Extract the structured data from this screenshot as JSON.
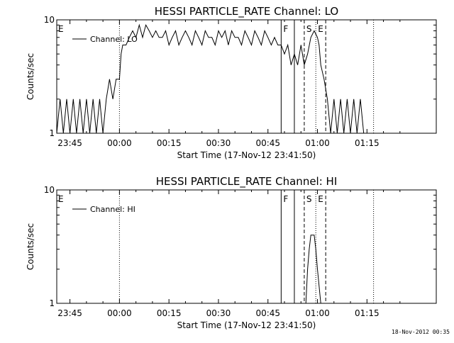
{
  "footer_timestamp": "18-Nov-2012 00:35",
  "chart_data": [
    {
      "type": "line",
      "title": "HESSI PARTICLE_RATE Channel: LO",
      "xlabel": "Start Time (17-Nov-12 23:41:50)",
      "ylabel": "Counts/sec",
      "yscale": "log",
      "ylim": [
        1,
        10
      ],
      "xlim_minutes": [
        -19,
        96
      ],
      "x_unit": "minutes relative to 00:00 (17-18 Nov 2012)",
      "x_ticks": [
        {
          "t": -15,
          "label": "23:45"
        },
        {
          "t": 0,
          "label": "00:00"
        },
        {
          "t": 15,
          "label": "00:15"
        },
        {
          "t": 30,
          "label": "00:30"
        },
        {
          "t": 45,
          "label": "00:45"
        },
        {
          "t": 60,
          "label": "01:00"
        },
        {
          "t": 75,
          "label": "01:15"
        }
      ],
      "y_ticks": [
        {
          "v": 1,
          "label": "1"
        },
        {
          "v": 10,
          "label": "10"
        }
      ],
      "legend": {
        "label": "Channel: LO",
        "placement": "top-left"
      },
      "flags": [
        {
          "t": -19,
          "label": "E",
          "style": "none"
        },
        {
          "t": 0,
          "label": "",
          "style": "dotted"
        },
        {
          "t": 49,
          "label": "F",
          "style": "solid"
        },
        {
          "t": 53,
          "label": "",
          "style": "solid"
        },
        {
          "t": 56,
          "label": "S",
          "style": "dashed"
        },
        {
          "t": 59.5,
          "label": "E",
          "style": "dotted"
        },
        {
          "t": 62.5,
          "label": "",
          "style": "dashed"
        },
        {
          "t": 77,
          "label": "",
          "style": "dotted"
        }
      ],
      "series": [
        {
          "name": "Channel: LO",
          "points": [
            [
              -19,
              1
            ],
            [
              -18,
              2
            ],
            [
              -17,
              1
            ],
            [
              -16,
              2
            ],
            [
              -15,
              1
            ],
            [
              -14,
              2
            ],
            [
              -13,
              1
            ],
            [
              -12,
              2
            ],
            [
              -11,
              1
            ],
            [
              -10,
              2
            ],
            [
              -9,
              1
            ],
            [
              -8,
              2
            ],
            [
              -7,
              1
            ],
            [
              -6,
              2
            ],
            [
              -5,
              1
            ],
            [
              -4,
              2
            ],
            [
              -3,
              3
            ],
            [
              -2,
              2
            ],
            [
              -1,
              3
            ],
            [
              0,
              3
            ],
            [
              0.5,
              5
            ],
            [
              1,
              6
            ],
            [
              2,
              6
            ],
            [
              3,
              7
            ],
            [
              4,
              8
            ],
            [
              5,
              7
            ],
            [
              6,
              9
            ],
            [
              7,
              7
            ],
            [
              8,
              9
            ],
            [
              9,
              8
            ],
            [
              10,
              7
            ],
            [
              11,
              8
            ],
            [
              12,
              7
            ],
            [
              13,
              7
            ],
            [
              14,
              8
            ],
            [
              15,
              6
            ],
            [
              16,
              7
            ],
            [
              17,
              8
            ],
            [
              18,
              6
            ],
            [
              19,
              7
            ],
            [
              20,
              8
            ],
            [
              21,
              7
            ],
            [
              22,
              6
            ],
            [
              23,
              8
            ],
            [
              24,
              7
            ],
            [
              25,
              6
            ],
            [
              26,
              8
            ],
            [
              27,
              7
            ],
            [
              28,
              7
            ],
            [
              29,
              6
            ],
            [
              30,
              8
            ],
            [
              31,
              7
            ],
            [
              32,
              8
            ],
            [
              33,
              6
            ],
            [
              34,
              8
            ],
            [
              35,
              7
            ],
            [
              36,
              7
            ],
            [
              37,
              6
            ],
            [
              38,
              8
            ],
            [
              39,
              7
            ],
            [
              40,
              6
            ],
            [
              41,
              8
            ],
            [
              42,
              7
            ],
            [
              43,
              6
            ],
            [
              44,
              8
            ],
            [
              45,
              7
            ],
            [
              46,
              6
            ],
            [
              47,
              7
            ],
            [
              48,
              6
            ],
            [
              49,
              6
            ],
            [
              50,
              5
            ],
            [
              51,
              6
            ],
            [
              52,
              4
            ],
            [
              53,
              5
            ],
            [
              54,
              4
            ],
            [
              55,
              6
            ],
            [
              56,
              4
            ],
            [
              57,
              5
            ],
            [
              58,
              7
            ],
            [
              59,
              8
            ],
            [
              60,
              7
            ],
            [
              60.5,
              6
            ],
            [
              61,
              4
            ],
            [
              62,
              3
            ],
            [
              63,
              2
            ],
            [
              64,
              1
            ],
            [
              65,
              2
            ],
            [
              66,
              1
            ],
            [
              67,
              2
            ],
            [
              68,
              1
            ],
            [
              69,
              2
            ],
            [
              70,
              1
            ],
            [
              71,
              2
            ],
            [
              72,
              1
            ],
            [
              73,
              2
            ],
            [
              74,
              1
            ]
          ]
        }
      ]
    },
    {
      "type": "line",
      "title": "HESSI PARTICLE_RATE Channel: HI",
      "xlabel": "Start Time (17-Nov-12 23:41:50)",
      "ylabel": "Counts/sec",
      "yscale": "log",
      "ylim": [
        1,
        10
      ],
      "xlim_minutes": [
        -19,
        96
      ],
      "x_unit": "minutes relative to 00:00 (17-18 Nov 2012)",
      "x_ticks": [
        {
          "t": -15,
          "label": "23:45"
        },
        {
          "t": 0,
          "label": "00:00"
        },
        {
          "t": 15,
          "label": "00:15"
        },
        {
          "t": 30,
          "label": "00:30"
        },
        {
          "t": 45,
          "label": "00:45"
        },
        {
          "t": 60,
          "label": "01:00"
        },
        {
          "t": 75,
          "label": "01:15"
        }
      ],
      "y_ticks": [
        {
          "v": 1,
          "label": "1"
        },
        {
          "v": 10,
          "label": "10"
        }
      ],
      "legend": {
        "label": "Channel: HI",
        "placement": "top-left"
      },
      "flags": [
        {
          "t": -19,
          "label": "E",
          "style": "none"
        },
        {
          "t": 0,
          "label": "",
          "style": "dotted"
        },
        {
          "t": 49,
          "label": "F",
          "style": "solid"
        },
        {
          "t": 53,
          "label": "",
          "style": "solid"
        },
        {
          "t": 56,
          "label": "S",
          "style": "dashed"
        },
        {
          "t": 59.5,
          "label": "E",
          "style": "dotted"
        },
        {
          "t": 62.5,
          "label": "",
          "style": "dashed"
        },
        {
          "t": 77,
          "label": "",
          "style": "dotted"
        }
      ],
      "series": [
        {
          "name": "Channel: HI",
          "points": [
            [
              56.5,
              1
            ],
            [
              57,
              2
            ],
            [
              57.5,
              3
            ],
            [
              58,
              4
            ],
            [
              59,
              4
            ],
            [
              59.5,
              3
            ],
            [
              60,
              2
            ],
            [
              61,
              1
            ],
            [
              62,
              1
            ]
          ]
        }
      ]
    }
  ]
}
